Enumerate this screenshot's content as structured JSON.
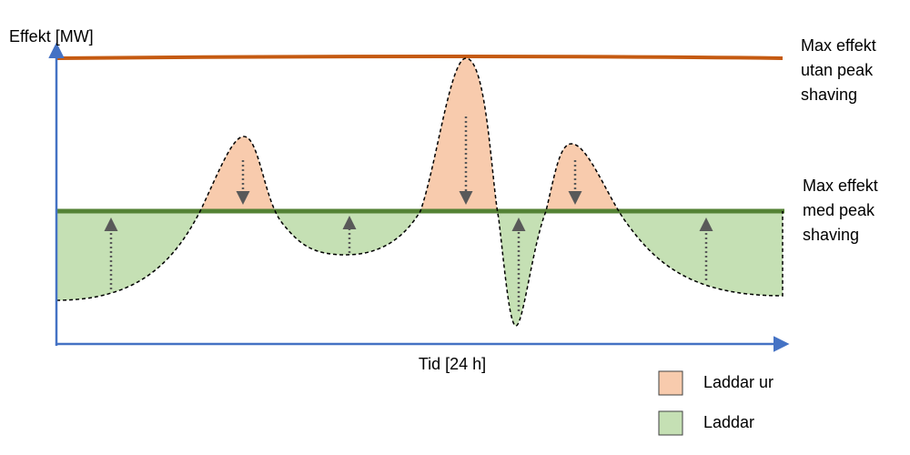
{
  "y_axis_label": "Effekt [MW]",
  "x_axis_label": "Tid [24 h]",
  "max_without_label": [
    "Max effekt",
    "utan peak",
    "shaving"
  ],
  "max_with_label": [
    "Max effekt",
    "med peak",
    "shaving"
  ],
  "legend": [
    "Laddar ur",
    "Laddar"
  ]
}
